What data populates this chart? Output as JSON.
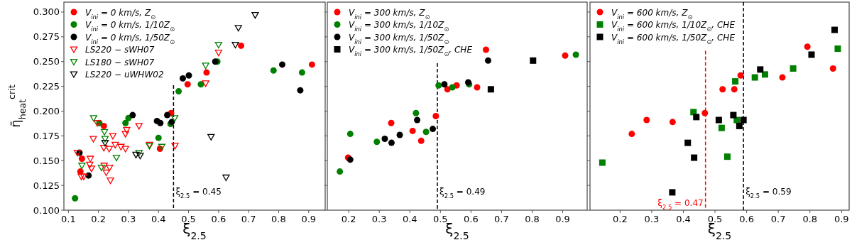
{
  "chart_data": [
    {
      "type": "scatter",
      "xlabel": "ξ$_{2.5}$",
      "ylabel": "η̄$_{heat}$$^{crit}$",
      "xlim": [
        0.085,
        0.955
      ],
      "ylim": [
        0.1,
        0.31
      ],
      "xticks": [
        0.1,
        0.2,
        0.3,
        0.4,
        0.5,
        0.6,
        0.7,
        0.8,
        0.9
      ],
      "yticks": [
        {
          "value": 0.1,
          "label": "0.100"
        },
        {
          "value": 0.125,
          "label": "0.125"
        },
        {
          "value": 0.15,
          "label": "0.150"
        },
        {
          "value": 0.175,
          "label": "0.175"
        },
        {
          "value": 0.2,
          "label": "0.200"
        },
        {
          "value": 0.225,
          "label": "0.225"
        },
        {
          "value": 0.25,
          "label": "0.250"
        },
        {
          "value": 0.275,
          "label": "0.275"
        },
        {
          "value": 0.3,
          "label": "0.300"
        }
      ],
      "legend": "top left",
      "ref_lines": [
        {
          "axis": "x",
          "value": 0.45,
          "label": "ξ$_{2.5}$ = 0.45",
          "color": "#000000",
          "line_style": "dashed"
        }
      ],
      "series": [
        {
          "name": "V$_{ini}$ = 0 km/s, Z$_{⊙}$",
          "color": "#ff0000",
          "marker": "circle",
          "x": [
            0.14,
            0.145,
            0.218,
            0.405,
            0.442,
            0.497,
            0.56,
            0.675,
            0.911
          ],
          "values": [
            0.139,
            0.152,
            0.185,
            0.162,
            0.198,
            0.227,
            0.239,
            0.266,
            0.247
          ]
        },
        {
          "name": "V$_{ini}$ = 0 km/s, 1/10Z$_{⊙}$",
          "color": "#008000",
          "marker": "circle",
          "x": [
            0.122,
            0.203,
            0.29,
            0.3,
            0.4,
            0.44,
            0.467,
            0.541,
            0.596,
            0.783,
            0.878
          ],
          "values": [
            0.112,
            0.188,
            0.188,
            0.193,
            0.173,
            0.187,
            0.22,
            0.227,
            0.25,
            0.241,
            0.239
          ]
        },
        {
          "name": "V$_{ini}$ = 0 km/s, 1/50Z$_{⊙}$",
          "color": "#000000",
          "marker": "circle",
          "x": [
            0.137,
            0.167,
            0.314,
            0.395,
            0.406,
            0.429,
            0.444,
            0.481,
            0.501,
            0.589,
            0.812,
            0.872
          ],
          "values": [
            0.158,
            0.135,
            0.196,
            0.19,
            0.188,
            0.196,
            0.189,
            0.233,
            0.236,
            0.25,
            0.247,
            0.221
          ]
        },
        {
          "name": "LS220 − sWH07",
          "color": "#ff0000",
          "marker": "triangle",
          "x": [
            0.13,
            0.143,
            0.151,
            0.173,
            0.171,
            0.177,
            0.183,
            0.196,
            0.218,
            0.219,
            0.226,
            0.236,
            0.237,
            0.24,
            0.248,
            0.256,
            0.275,
            0.29,
            0.294,
            0.29,
            0.335,
            0.37,
            0.455,
            0.557,
            0.6
          ],
          "values": [
            0.158,
            0.134,
            0.134,
            0.152,
            0.146,
            0.142,
            0.172,
            0.188,
            0.163,
            0.145,
            0.138,
            0.162,
            0.143,
            0.13,
            0.175,
            0.166,
            0.164,
            0.177,
            0.181,
            0.162,
            0.185,
            0.166,
            0.165,
            0.228,
            0.259
          ]
        },
        {
          "name": "LS180 − sWH07",
          "color": "#008000",
          "marker": "triangle",
          "x": [
            0.145,
            0.184,
            0.21,
            0.22,
            0.222,
            0.26,
            0.335,
            0.37,
            0.411,
            0.454,
            0.557,
            0.6
          ],
          "values": [
            0.145,
            0.193,
            0.143,
            0.179,
            0.172,
            0.153,
            0.158,
            0.165,
            0.164,
            0.193,
            0.246,
            0.267
          ]
        },
        {
          "name": "LS220 − uWHW02",
          "color": "#000000",
          "marker": "triangle",
          "x": [
            0.222,
            0.325,
            0.339,
            0.575,
            0.625,
            0.656,
            0.666,
            0.722
          ],
          "values": [
            0.168,
            0.156,
            0.155,
            0.174,
            0.133,
            0.267,
            0.284,
            0.297
          ]
        }
      ]
    },
    {
      "type": "scatter",
      "xlabel": "ξ$_{2.5}$",
      "xlim": [
        0.13,
        0.98
      ],
      "ylim": [
        0.1,
        0.31
      ],
      "tick_labels": "x",
      "xticks": [
        0.2,
        0.3,
        0.4,
        0.5,
        0.6,
        0.7,
        0.8,
        0.9
      ],
      "yticks": [
        {
          "value": 0.1,
          "label": null
        },
        {
          "value": 0.125,
          "label": null
        },
        {
          "value": 0.15,
          "label": null
        },
        {
          "value": 0.175,
          "label": null
        },
        {
          "value": 0.2,
          "label": null
        },
        {
          "value": 0.225,
          "label": null
        },
        {
          "value": 0.25,
          "label": null
        },
        {
          "value": 0.275,
          "label": null
        },
        {
          "value": 0.3,
          "label": null
        }
      ],
      "legend": "top left",
      "ref_lines": [
        {
          "axis": "x",
          "value": 0.49,
          "label": "ξ$_{2.5}$ = 0.49",
          "color": "#000000",
          "line_style": "dashed"
        }
      ],
      "series": [
        {
          "name": "V$_{ini}$ = 300 km/s, Z$_{⊙}$",
          "color": "#ff0000",
          "marker": "circle",
          "x": [
            0.198,
            0.339,
            0.409,
            0.437,
            0.485,
            0.523,
            0.553,
            0.62,
            0.649,
            0.908
          ],
          "values": [
            0.153,
            0.188,
            0.18,
            0.17,
            0.195,
            0.222,
            0.226,
            0.224,
            0.262,
            0.256
          ]
        },
        {
          "name": "V$_{ini}$ = 300 km/s, 1/10Z$_{⊙}$",
          "color": "#008000",
          "marker": "circle",
          "x": [
            0.171,
            0.205,
            0.292,
            0.42,
            0.453,
            0.494,
            0.539,
            0.594,
            0.943
          ],
          "values": [
            0.139,
            0.177,
            0.169,
            0.198,
            0.179,
            0.226,
            0.224,
            0.227,
            0.257
          ]
        },
        {
          "name": "V$_{ini}$ = 300 km/s, 1/50Z$_{⊙}$",
          "color": "#000000",
          "marker": "circle",
          "x": [
            0.205,
            0.318,
            0.34,
            0.367,
            0.424,
            0.475,
            0.513,
            0.591,
            0.656
          ],
          "values": [
            0.151,
            0.172,
            0.168,
            0.176,
            0.191,
            0.182,
            0.227,
            0.229,
            0.251
          ]
        },
        {
          "name": "V$_{ini}$ = 300 km/s, 1/50Z$_{⊙}$, CHE",
          "color": "#000000",
          "marker": "square",
          "x": [
            0.665,
            0.803
          ],
          "values": [
            0.222,
            0.251
          ]
        }
      ]
    },
    {
      "type": "scatter",
      "xlabel": "ξ$_{2.5}$",
      "xlim": [
        0.105,
        0.924
      ],
      "ylim": [
        0.1,
        0.31
      ],
      "tick_labels": "x",
      "xticks": [
        0.2,
        0.3,
        0.4,
        0.5,
        0.6,
        0.7,
        0.8,
        0.9
      ],
      "yticks": [
        {
          "value": 0.1,
          "label": null
        },
        {
          "value": 0.125,
          "label": null
        },
        {
          "value": 0.15,
          "label": null
        },
        {
          "value": 0.175,
          "label": null
        },
        {
          "value": 0.2,
          "label": null
        },
        {
          "value": 0.225,
          "label": null
        },
        {
          "value": 0.25,
          "label": null
        },
        {
          "value": 0.275,
          "label": null
        },
        {
          "value": 0.3,
          "label": null
        }
      ],
      "legend": "top left",
      "ref_lines": [
        {
          "axis": "x",
          "value": 0.47,
          "label": "ξ$_{2.5}$ = 0.47",
          "color": "#ff0000",
          "line_style": "dashed"
        },
        {
          "axis": "x",
          "value": 0.59,
          "label": "ξ$_{2.5}$ = 0.59",
          "color": "#000000",
          "line_style": "dashed"
        }
      ],
      "series": [
        {
          "name": "V$_{ini}$ = 600 km/s, Z$_{⊙}$",
          "color": "#ff0000",
          "marker": "circle",
          "x": [
            0.237,
            0.284,
            0.366,
            0.468,
            0.524,
            0.561,
            0.581,
            0.713,
            0.792,
            0.873
          ],
          "values": [
            0.177,
            0.191,
            0.189,
            0.198,
            0.222,
            0.222,
            0.236,
            0.234,
            0.265,
            0.243
          ]
        },
        {
          "name": "V$_{ini}$ = 600 km/s, 1/10Z$_{⊙}$, CHE",
          "color": "#008000",
          "marker": "square",
          "x": [
            0.144,
            0.432,
            0.521,
            0.539,
            0.564,
            0.569,
            0.626,
            0.658,
            0.747,
            0.888
          ],
          "values": [
            0.148,
            0.199,
            0.183,
            0.154,
            0.23,
            0.191,
            0.234,
            0.237,
            0.243,
            0.263
          ]
        },
        {
          "name": "V$_{ini}$ = 600 km/s, 1/50Z$_{⊙}$, CHE",
          "color": "#000000",
          "marker": "square",
          "x": [
            0.365,
            0.414,
            0.434,
            0.441,
            0.512,
            0.558,
            0.577,
            0.59,
            0.643,
            0.805,
            0.878
          ],
          "values": [
            0.118,
            0.168,
            0.153,
            0.194,
            0.191,
            0.196,
            0.185,
            0.191,
            0.242,
            0.257,
            0.282
          ]
        }
      ]
    }
  ]
}
